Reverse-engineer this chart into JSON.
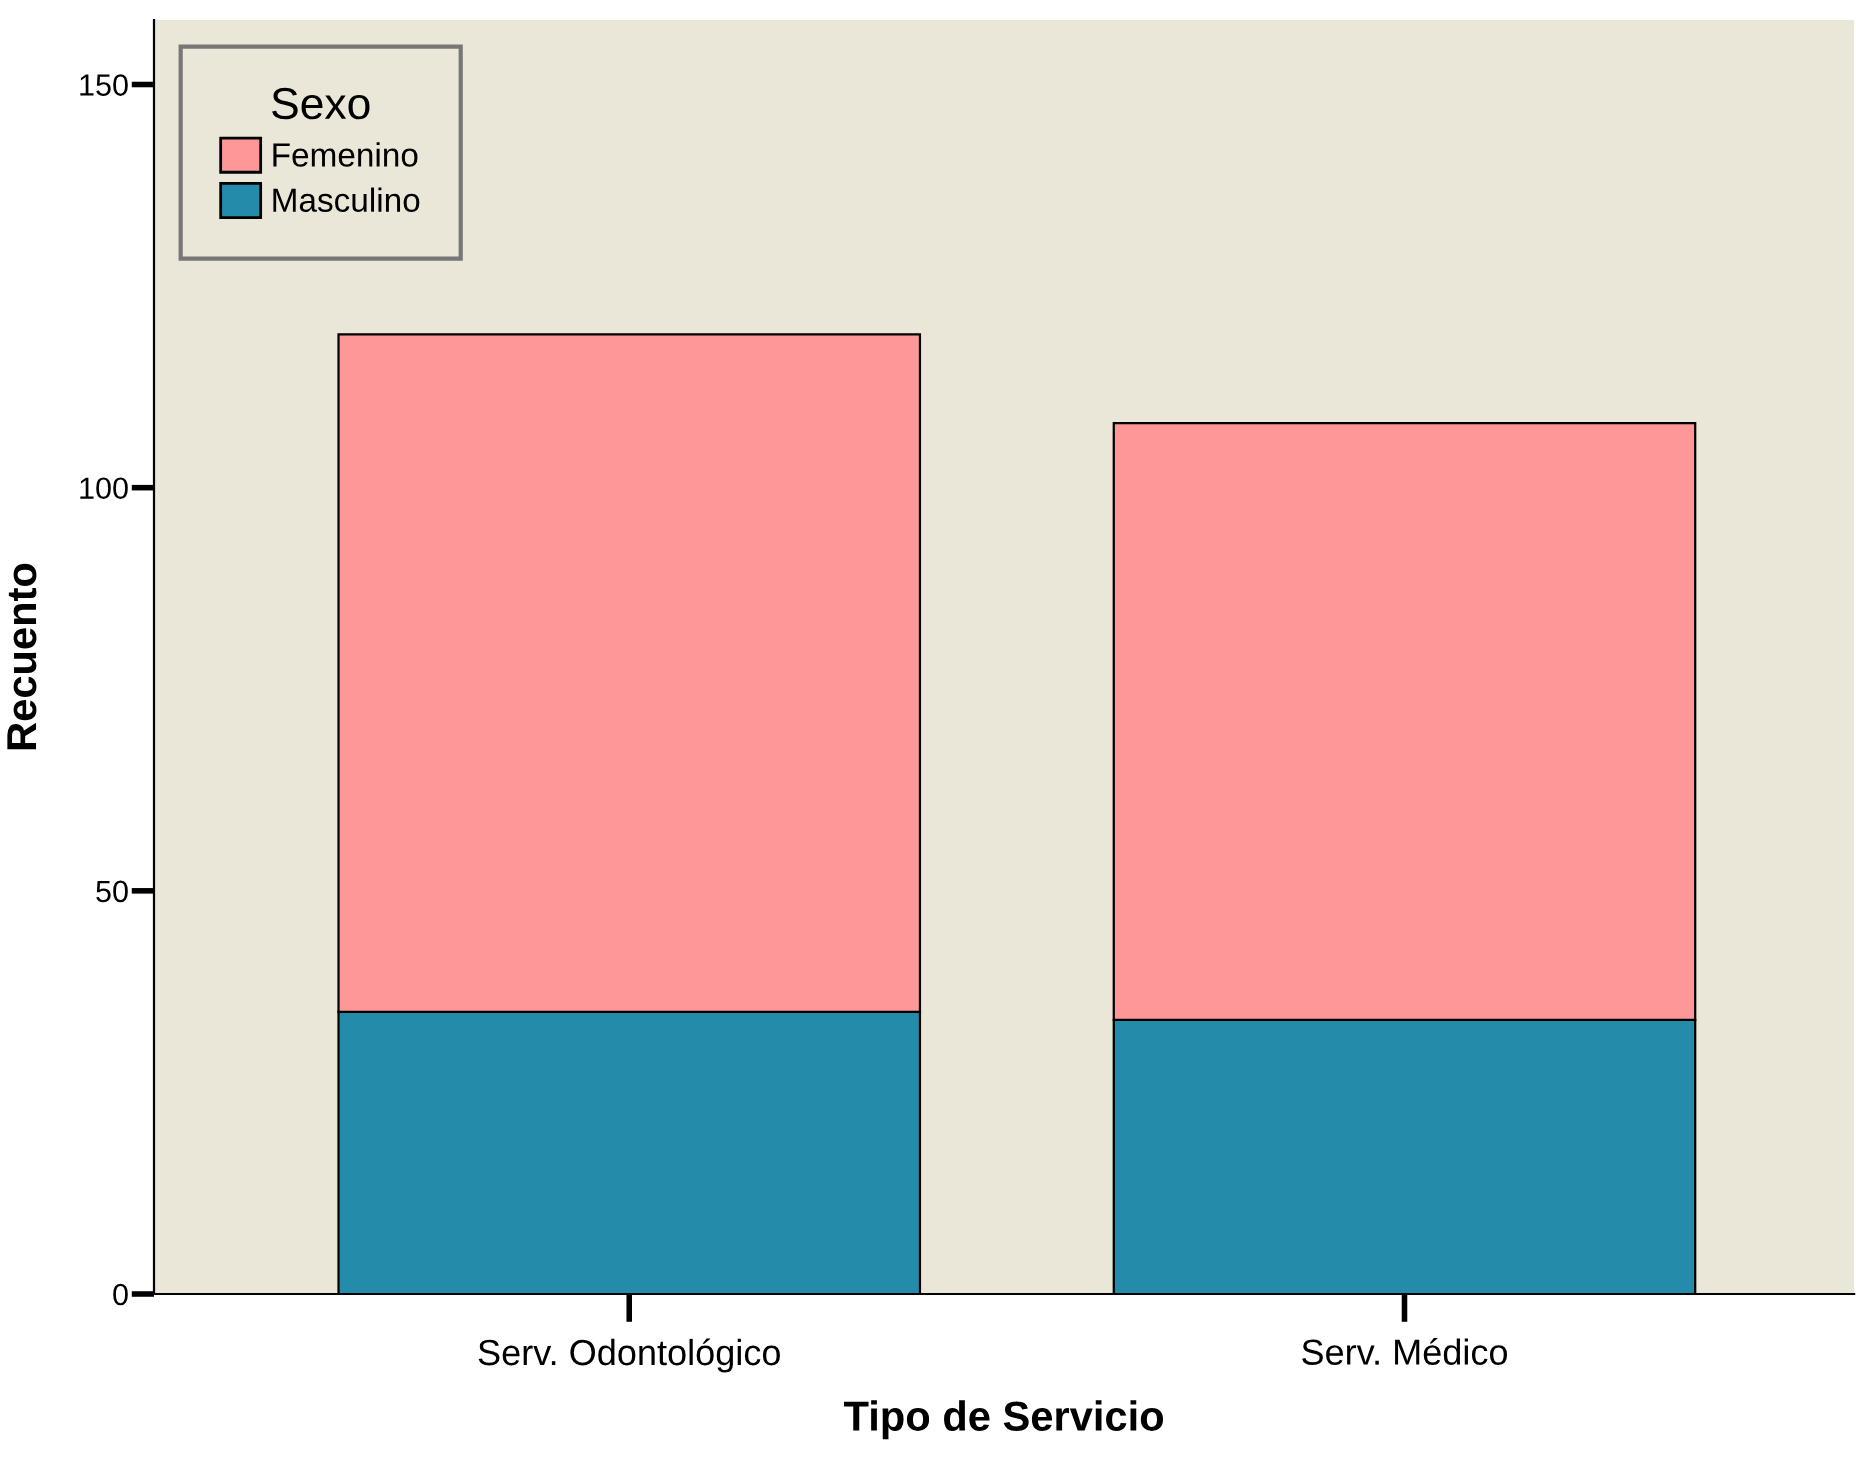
{
  "chart_data": {
    "type": "bar",
    "stacked": true,
    "xlabel": "Tipo de Servicio",
    "ylabel": "Recuento",
    "legend_title": "Sexo",
    "legend": "top left",
    "grid": false,
    "categories": [
      "Serv. Odontológico",
      "Serv. Médico"
    ],
    "series": [
      {
        "name": "Masculino",
        "color": "#258bab",
        "values": [
          35,
          34
        ]
      },
      {
        "name": "Femenino",
        "color": "#fe9797",
        "values": [
          84,
          74
        ]
      }
    ],
    "ylim": [
      0,
      158
    ],
    "yticks": [
      0,
      50,
      100,
      150
    ]
  }
}
